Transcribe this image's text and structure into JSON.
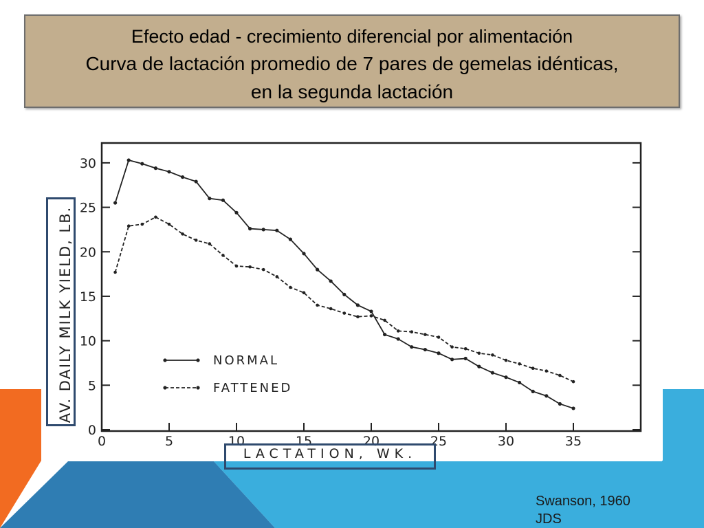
{
  "slide": {
    "title_line1": "Efecto edad - crecimiento diferencial por alimentación",
    "title_line2": "Curva de lactación promedio de 7 pares de gemelas idénticas,",
    "title_line3": "en la segunda lactación",
    "citation_line1": "Swanson, 1960",
    "citation_line2": "JDS"
  },
  "colors": {
    "title_background": "#c2ae8e",
    "highlight_border": "#2f4a6e",
    "accent_orange": "#f26b21",
    "accent_blue": "#3aaedd",
    "accent_dark_blue": "#2f7db3"
  },
  "chart_data": {
    "type": "line",
    "title": "",
    "xlabel": "LACTATION, WK.",
    "ylabel": "AV. DAILY MILK YIELD, LB.",
    "xlim": [
      0,
      35
    ],
    "ylim": [
      0,
      30
    ],
    "x_ticks": [
      0,
      5,
      10,
      15,
      20,
      25,
      30,
      35
    ],
    "y_ticks": [
      0,
      5,
      10,
      15,
      20,
      25,
      30
    ],
    "grid": false,
    "legend_position": "lower-left inside plot",
    "series": [
      {
        "name": "NORMAL",
        "style": "solid",
        "x": [
          1,
          2,
          3,
          4,
          5,
          6,
          7,
          8,
          9,
          10,
          11,
          12,
          13,
          14,
          15,
          16,
          17,
          18,
          19,
          20,
          21,
          22,
          23,
          24,
          25,
          26,
          27,
          28,
          29,
          30,
          31,
          32,
          33,
          34,
          35
        ],
        "y": [
          25.5,
          30.3,
          29.9,
          29.4,
          29.0,
          28.4,
          27.9,
          26.0,
          25.8,
          24.4,
          22.6,
          22.5,
          22.4,
          21.4,
          19.8,
          18.0,
          16.7,
          15.2,
          14.0,
          13.3,
          10.7,
          10.2,
          9.3,
          9.0,
          8.6,
          7.9,
          8.0,
          7.1,
          6.4,
          5.9,
          5.3,
          4.3,
          3.8,
          2.9,
          2.4
        ]
      },
      {
        "name": "FATTENED",
        "style": "dashed",
        "x": [
          1,
          2,
          3,
          4,
          5,
          6,
          7,
          8,
          9,
          10,
          11,
          12,
          13,
          14,
          15,
          16,
          17,
          18,
          19,
          20,
          21,
          22,
          23,
          24,
          25,
          26,
          27,
          28,
          29,
          30,
          31,
          32,
          33,
          34,
          35
        ],
        "y": [
          17.7,
          22.9,
          23.1,
          23.9,
          23.1,
          22.0,
          21.3,
          20.9,
          19.6,
          18.4,
          18.3,
          18.0,
          17.2,
          16.0,
          15.4,
          14.0,
          13.6,
          13.1,
          12.7,
          12.8,
          12.3,
          11.1,
          11.0,
          10.7,
          10.4,
          9.3,
          9.1,
          8.6,
          8.4,
          7.8,
          7.4,
          6.9,
          6.6,
          6.1,
          5.4
        ]
      }
    ]
  }
}
